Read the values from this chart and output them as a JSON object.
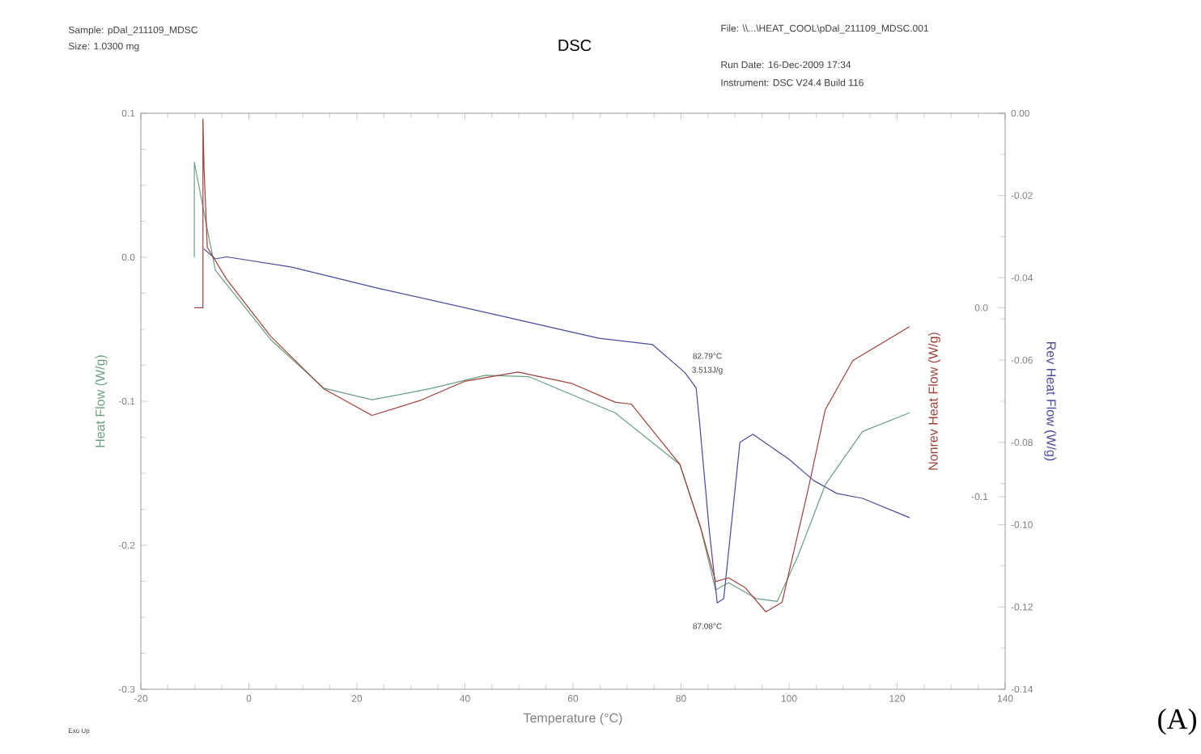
{
  "chart_data": {
    "type": "line",
    "title": "DSC",
    "xlabel": "Temperature (°C)",
    "ylabel": "Heat Flow (W/g)",
    "y2label": "Rev Heat Flow (W/g)",
    "y3label": "Nonrev Heat Flow (W/g)",
    "xlim": [
      -20,
      140
    ],
    "xticks": [
      -20,
      0,
      20,
      40,
      60,
      80,
      100,
      120,
      140
    ],
    "ylim": [
      -0.3,
      0.1
    ],
    "yticks": [
      -0.3,
      -0.2,
      -0.1,
      {
        "value": 0,
        "label": "0.0"
      },
      0.1
    ],
    "y2lim": [
      -0.14,
      0
    ],
    "y2ticks": [
      -0.14,
      -0.12,
      {
        "value": -0.1,
        "label": "-0.10"
      },
      -0.08,
      -0.06,
      -0.04,
      -0.02,
      {
        "value": 0,
        "label": "0.00"
      }
    ],
    "y3lim": [
      -0.202,
      0.103
    ],
    "y3ticks": [
      -0.1,
      {
        "value": 0,
        "label": "0.0"
      }
    ],
    "grid": false,
    "series": [
      {
        "color": "#6b9e80",
        "axis": "y",
        "x": [
          -10.1,
          -10.1,
          -8.0,
          -6.2,
          4.0,
          13.9,
          22.8,
          33.9,
          43.8,
          51.9,
          67.8,
          79.8,
          83.7,
          86.4,
          88.8,
          93.9,
          97.8,
          101.7,
          106.7,
          113.6,
          122.3
        ],
        "values": [
          0.0,
          0.066,
          0.025,
          -0.009,
          -0.057,
          -0.091,
          -0.099,
          -0.091,
          -0.082,
          -0.083,
          -0.108,
          -0.144,
          -0.189,
          -0.231,
          -0.226,
          -0.237,
          -0.239,
          -0.207,
          -0.158,
          -0.121,
          -0.108
        ]
      },
      {
        "color": "#a0403a",
        "axis": "y3",
        "x": [
          -10.1,
          -8.5,
          -8.5,
          -8.3,
          -7.7,
          -4.1,
          4.0,
          13.9,
          22.8,
          31.8,
          39.9,
          49.8,
          59.7,
          67.8,
          70.8,
          79.8,
          83.7,
          86.4,
          88.8,
          91.8,
          95.7,
          98.7,
          103.7,
          106.7,
          111.8,
          122.3
        ],
        "values": [
          0.0,
          0.0,
          0.1,
          0.074,
          0.032,
          0.015,
          -0.015,
          -0.043,
          -0.057,
          -0.049,
          -0.039,
          -0.034,
          -0.04,
          -0.05,
          -0.051,
          -0.083,
          -0.117,
          -0.145,
          -0.143,
          -0.148,
          -0.161,
          -0.156,
          -0.094,
          -0.054,
          -0.028,
          -0.01
        ]
      },
      {
        "color": "#4a4aa0",
        "axis": "y2",
        "x": [
          -8.3,
          -6.2,
          -4.1,
          7.9,
          23.8,
          43.8,
          64.8,
          74.7,
          80.7,
          82.8,
          83.4,
          85.2,
          86.7,
          87.9,
          90.9,
          93.3,
          99.9,
          104.6,
          108.8,
          113.6,
          122.3
        ],
        "values": [
          -0.033,
          -0.0354,
          -0.0349,
          -0.0374,
          -0.0425,
          -0.0484,
          -0.0547,
          -0.0562,
          -0.063,
          -0.0668,
          -0.0747,
          -0.101,
          -0.119,
          -0.118,
          -0.08,
          -0.078,
          -0.084,
          -0.0893,
          -0.0924,
          -0.0936,
          -0.0983
        ]
      }
    ],
    "annotations": [
      "Sample: pDal_211109_MDSC",
      "Size: 1.0300 mg",
      "File: \\\\...\\HEAT_COOL\\pDal_211109_MDSC.001",
      "Run Date: 16-Dec-2009 17:34",
      "Instrument: DSC V24.4 Build 116",
      "Exo Up",
      "(A)",
      "82.79°C",
      "3.513J/g",
      "87.08°C"
    ]
  }
}
